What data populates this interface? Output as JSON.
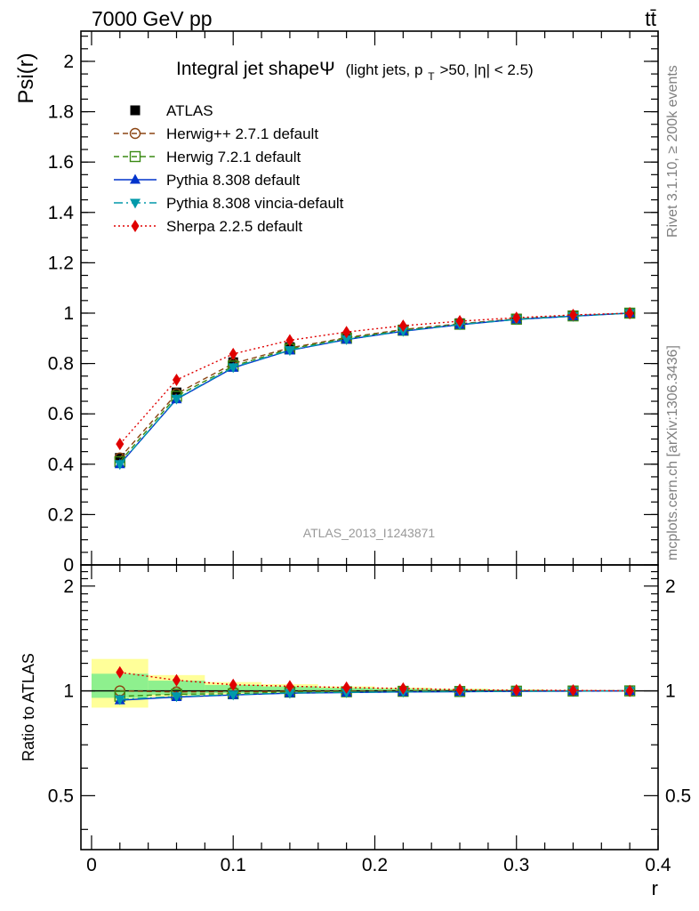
{
  "header": {
    "left": "7000 GeV pp",
    "right": "tt̄"
  },
  "side_labels": {
    "rivet": "Rivet 3.1.10, ≥ 200k events",
    "mcplots": "mcplots.cern.ch [arXiv:1306.3436]"
  },
  "watermark": "ATLAS_2013_I1243871",
  "chart_data": [
    {
      "type": "line",
      "title_main": "Integral jet shapeΨ",
      "title_sub_1": "(light jets, p",
      "title_sub_sub": "T",
      "title_sub_2": ">50, |η| < 2.5)",
      "ylabel": "Psi(r)",
      "xlim": [
        -0.0075,
        0.4
      ],
      "ylim": [
        0,
        2.12
      ],
      "yticks": [
        0,
        0.2,
        0.4,
        0.6,
        0.8,
        1,
        1.2,
        1.4,
        1.6,
        1.8,
        2
      ],
      "ytick_labels": [
        "0",
        "0.2",
        "0.4",
        "0.6",
        "0.8",
        "1",
        "1.2",
        "1.4",
        "1.6",
        "1.8",
        "2"
      ],
      "legend_position": "top-left",
      "x": [
        0.02,
        0.06,
        0.1,
        0.14,
        0.18,
        0.22,
        0.26,
        0.3,
        0.34,
        0.38
      ],
      "series": [
        {
          "name": "ATLAS",
          "color": "#000000",
          "marker": "square",
          "dash": "none",
          "values": [
            0.425,
            0.685,
            0.805,
            0.865,
            0.905,
            0.935,
            0.96,
            0.978,
            0.99,
            1.0
          ]
        },
        {
          "name": "Herwig++ 2.7.1 default",
          "color": "#8B4513",
          "marker": "circle-open",
          "dash": "6,4",
          "values": [
            0.425,
            0.68,
            0.8,
            0.862,
            0.903,
            0.935,
            0.958,
            0.977,
            0.99,
            1.0
          ]
        },
        {
          "name": "Herwig 7.2.1 default",
          "color": "#3A8A14",
          "marker": "square-open",
          "dash": "6,4",
          "values": [
            0.41,
            0.67,
            0.79,
            0.858,
            0.9,
            0.932,
            0.956,
            0.976,
            0.989,
            1.0
          ]
        },
        {
          "name": "Pythia 8.308 default",
          "color": "#0033CC",
          "marker": "triangle-up",
          "dash": "none",
          "values": [
            0.4,
            0.658,
            0.783,
            0.852,
            0.895,
            0.928,
            0.954,
            0.975,
            0.988,
            1.0
          ]
        },
        {
          "name": "Pythia 8.308 vincia-default",
          "color": "#0099AA",
          "marker": "triangle-down",
          "dash": "10,4,2,4",
          "values": [
            0.4,
            0.66,
            0.785,
            0.853,
            0.896,
            0.929,
            0.955,
            0.975,
            0.988,
            1.0
          ]
        },
        {
          "name": "Sherpa 2.2.5 default",
          "color": "#E00000",
          "marker": "diamond",
          "dash": "2,3",
          "values": [
            0.48,
            0.735,
            0.838,
            0.892,
            0.925,
            0.95,
            0.968,
            0.982,
            0.993,
            1.0
          ]
        }
      ]
    },
    {
      "type": "line",
      "xlabel": "r",
      "ylabel": "Ratio to ATLAS",
      "xlim": [
        -0.0075,
        0.4
      ],
      "ylim": [
        0.35,
        2.3
      ],
      "yticks": [
        0.5,
        1,
        2
      ],
      "ytick_labels": [
        "0.5",
        "1",
        "2"
      ],
      "xticks": [
        0,
        0.1,
        0.2,
        0.3,
        0.4
      ],
      "xtick_labels": [
        "0",
        "0.1",
        "0.2",
        "0.3",
        "0.4"
      ],
      "reference_line": 1,
      "x": [
        0.02,
        0.06,
        0.1,
        0.14,
        0.18,
        0.22,
        0.26,
        0.3,
        0.34,
        0.38
      ],
      "bands": {
        "bin_edges": [
          0.0,
          0.04,
          0.08,
          0.12,
          0.16,
          0.2,
          0.24,
          0.28,
          0.32,
          0.36,
          0.4
        ],
        "stat_low": [
          0.955,
          0.975,
          0.985,
          0.99,
          0.993,
          0.995,
          0.996,
          0.997,
          0.998,
          0.999
        ],
        "stat_high": [
          1.12,
          1.07,
          1.04,
          1.03,
          1.02,
          1.015,
          1.01,
          1.006,
          1.003,
          1.001
        ],
        "total_low": [
          0.895,
          0.96,
          0.975,
          0.982,
          0.988,
          0.99,
          0.993,
          0.995,
          0.997,
          0.999
        ],
        "total_high": [
          1.235,
          1.11,
          1.06,
          1.045,
          1.03,
          1.022,
          1.015,
          1.01,
          1.005,
          1.002
        ],
        "stat_color": "#8EF08E",
        "total_color": "#FFFF99"
      },
      "series": [
        {
          "name": "Herwig++ 2.7.1 default",
          "values": [
            1.0,
            0.993,
            0.994,
            0.997,
            0.998,
            1.0,
            0.998,
            0.999,
            1.0,
            1.0
          ]
        },
        {
          "name": "Herwig 7.2.1 default",
          "values": [
            0.965,
            0.978,
            0.981,
            0.992,
            0.994,
            0.997,
            0.996,
            0.998,
            0.999,
            1.0
          ]
        },
        {
          "name": "Pythia 8.308 default",
          "values": [
            0.94,
            0.96,
            0.973,
            0.985,
            0.989,
            0.993,
            0.994,
            0.997,
            0.998,
            1.0
          ]
        },
        {
          "name": "Pythia 8.308 vincia-default",
          "values": [
            0.945,
            0.964,
            0.975,
            0.986,
            0.99,
            0.994,
            0.995,
            0.997,
            0.998,
            1.0
          ]
        },
        {
          "name": "Sherpa 2.2.5 default",
          "values": [
            1.13,
            1.073,
            1.041,
            1.031,
            1.022,
            1.016,
            1.008,
            1.004,
            1.003,
            1.0
          ]
        }
      ]
    }
  ]
}
